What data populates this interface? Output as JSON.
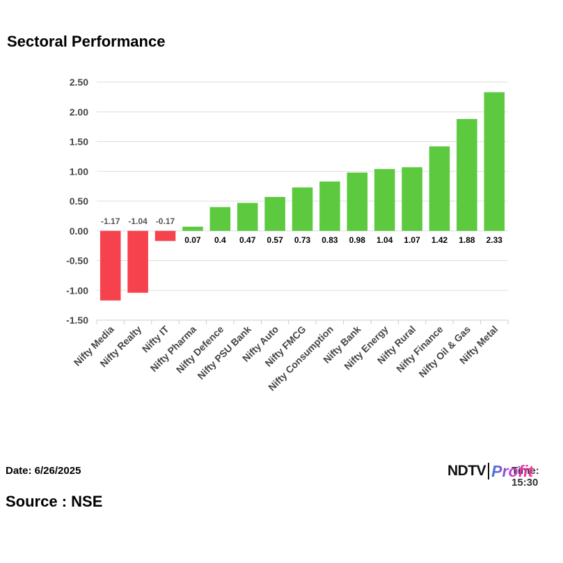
{
  "title": "Sectoral Performance",
  "footer": {
    "date": "Date: 6/26/2025",
    "source": "Source : NSE",
    "time": "Time: 15:30",
    "logo_left": "NDTV",
    "logo_right": "Profit"
  },
  "colors": {
    "positive": "#5cc93f",
    "negative": "#f5424d",
    "grid": "#dddddd",
    "axis": "#cccccc",
    "label_pos": "#000000",
    "label_neg": "#555555"
  },
  "chart_data": {
    "type": "bar",
    "title": "Sectoral Performance",
    "xlabel": "",
    "ylabel": "",
    "ylim": [
      -1.5,
      2.5
    ],
    "yticks": [
      "2.50",
      "2.00",
      "1.50",
      "1.00",
      "0.50",
      "0.00",
      "-0.50",
      "-1.00",
      "-1.50"
    ],
    "ytick_values": [
      2.5,
      2.0,
      1.5,
      1.0,
      0.5,
      0.0,
      -0.5,
      -1.0,
      -1.5
    ],
    "grid": true,
    "legend": "none",
    "categories": [
      "Nifty Media",
      "Nifty Realty",
      "Nifty IT",
      "Nifty Pharma",
      "Nifty Defence",
      "Nifty PSU Bank",
      "Nifty Auto",
      "Nifty FMCG",
      "Nifty Consumption",
      "Nifty Bank",
      "Nifty Energy",
      "Nifty Rural",
      "Nifty Finance",
      "Nifty Oil & Gas",
      "Nifty Metal"
    ],
    "values": [
      -1.17,
      -1.04,
      -0.17,
      0.07,
      0.4,
      0.47,
      0.57,
      0.73,
      0.83,
      0.98,
      1.04,
      1.07,
      1.42,
      1.88,
      2.33
    ],
    "labels": [
      "-1.17",
      "-1.04",
      "-0.17",
      "0.07",
      "0.4",
      "0.47",
      "0.57",
      "0.73",
      "0.83",
      "0.98",
      "1.04",
      "1.07",
      "1.42",
      "1.88",
      "2.33"
    ]
  }
}
